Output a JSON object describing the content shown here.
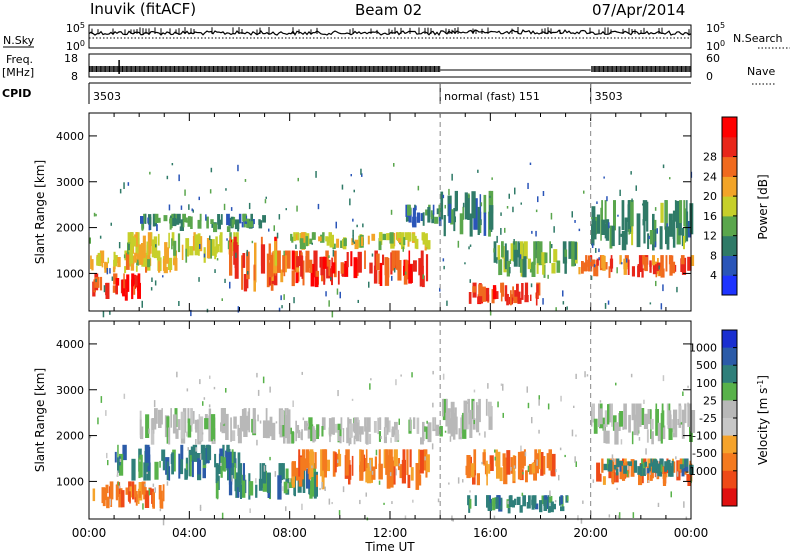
{
  "header": {
    "station": "Inuvik (fitACF)",
    "beam": "Beam 02",
    "date": "07/Apr/2014"
  },
  "panels": {
    "nsky": {
      "label_left": "N.Sky",
      "scale_top": "10^5",
      "scale_bottom": "10^0",
      "label_right": "N.Search",
      "right_top": "10^5",
      "right_bottom": "10^0"
    },
    "freq": {
      "label_left_1": "Freq.",
      "label_left_2": "[MHz]",
      "scale_top": "18",
      "scale_bottom": "8",
      "label_right": "Nave",
      "right_top": "60",
      "right_bottom": "0"
    },
    "cpid": {
      "label": "CPID",
      "segments": [
        {
          "text": "3503",
          "start_hour": 0,
          "end_hour": 14
        },
        {
          "text": "normal (fast) 151",
          "start_hour": 14,
          "end_hour": 20
        },
        {
          "text": "3503",
          "start_hour": 20,
          "end_hour": 24
        }
      ]
    }
  },
  "colorbars": {
    "power": {
      "label": "Power [dB]",
      "ticks": [
        "4",
        "8",
        "12",
        "16",
        "20",
        "24",
        "28"
      ],
      "colors": [
        "#1e34ff",
        "#2a55b8",
        "#2f7a67",
        "#5aa64c",
        "#c6cf2a",
        "#f2a428",
        "#f06a1e",
        "#e8261a",
        "#ff0000"
      ]
    },
    "velocity": {
      "label": "Velocity [m s^-1]",
      "ticks": [
        "1000",
        "500",
        "100",
        "25",
        "-25",
        "-100",
        "-500",
        "-1000"
      ],
      "colors": [
        "#1a2fd0",
        "#2b5ba8",
        "#2f7f7a",
        "#58b24a",
        "#b8b8b8",
        "#c7c7c7",
        "#f5a32b",
        "#f47a1f",
        "#ee4a18",
        "#e01010"
      ]
    }
  },
  "chart_data": [
    {
      "type": "heatmap",
      "title": "Power",
      "xlabel": "Time UT",
      "ylabel": "Slant Range [km]",
      "x_ticks": [
        "00:00",
        "04:00",
        "08:00",
        "12:00",
        "16:00",
        "20:00",
        "00:00"
      ],
      "y_ticks": [
        "1000",
        "2000",
        "3000",
        "4000"
      ],
      "xlim_hours": [
        0,
        24
      ],
      "ylim_km": [
        180,
        4500
      ],
      "colorbar_label": "Power [dB]",
      "colorbar_ticks": [
        4,
        8,
        12,
        16,
        20,
        24,
        28
      ],
      "regions": [
        {
          "t0": 0.0,
          "t1": 2.0,
          "r0": 400,
          "r1": 1000,
          "dB": 27
        },
        {
          "t0": 0.0,
          "t1": 3.5,
          "r0": 1000,
          "r1": 1500,
          "dB": 18
        },
        {
          "t0": 1.5,
          "t1": 6.0,
          "r0": 1200,
          "r1": 1900,
          "dB": 17
        },
        {
          "t0": 2.0,
          "t1": 7.0,
          "r0": 1900,
          "r1": 2300,
          "dB": 9
        },
        {
          "t0": 5.5,
          "t1": 7.5,
          "r0": 600,
          "r1": 1800,
          "dB": 26
        },
        {
          "t0": 7.0,
          "t1": 8.5,
          "r0": 800,
          "r1": 1500,
          "dB": 22
        },
        {
          "t0": 8.0,
          "t1": 13.5,
          "r0": 700,
          "r1": 1500,
          "dB": 27
        },
        {
          "t0": 8.0,
          "t1": 13.5,
          "r0": 1500,
          "r1": 1900,
          "dB": 15
        },
        {
          "t0": 12.5,
          "t1": 14.0,
          "r0": 2000,
          "r1": 2500,
          "dB": 8
        },
        {
          "t0": 14.0,
          "t1": 16.0,
          "r0": 1800,
          "r1": 2800,
          "dB": 9
        },
        {
          "t0": 15.0,
          "t1": 18.0,
          "r0": 300,
          "r1": 800,
          "dB": 26
        },
        {
          "t0": 16.0,
          "t1": 19.5,
          "r0": 900,
          "r1": 1700,
          "dB": 12
        },
        {
          "t0": 19.5,
          "t1": 24.0,
          "r0": 900,
          "r1": 1400,
          "dB": 24
        },
        {
          "t0": 20.0,
          "t1": 24.0,
          "r0": 1500,
          "r1": 2600,
          "dB": 10
        }
      ]
    },
    {
      "type": "heatmap",
      "title": "Velocity",
      "xlabel": "Time UT",
      "ylabel": "Slant Range [km]",
      "x_ticks": [
        "00:00",
        "04:00",
        "08:00",
        "12:00",
        "16:00",
        "20:00",
        "00:00"
      ],
      "y_ticks": [
        "1000",
        "2000",
        "3000",
        "4000"
      ],
      "xlim_hours": [
        0,
        24
      ],
      "ylim_km": [
        180,
        4500
      ],
      "colorbar_label": "Velocity [m s^-1]",
      "colorbar_ticks": [
        1000,
        500,
        100,
        25,
        -25,
        -100,
        -500,
        -1000
      ],
      "regions": [
        {
          "t0": 0.0,
          "t1": 3.0,
          "r0": 400,
          "r1": 1000,
          "v": -150
        },
        {
          "t0": 1.0,
          "t1": 6.0,
          "r0": 1000,
          "r1": 1800,
          "v": 150
        },
        {
          "t0": 2.0,
          "t1": 8.0,
          "r0": 1800,
          "r1": 2600,
          "v": 0
        },
        {
          "t0": 5.0,
          "t1": 9.0,
          "r0": 600,
          "r1": 1400,
          "v": 200
        },
        {
          "t0": 8.0,
          "t1": 13.5,
          "r0": 800,
          "r1": 1700,
          "v": -200
        },
        {
          "t0": 8.0,
          "t1": 14.0,
          "r0": 1800,
          "r1": 2400,
          "v": 0
        },
        {
          "t0": 14.0,
          "t1": 16.0,
          "r0": 1900,
          "r1": 2800,
          "v": 0
        },
        {
          "t0": 15.0,
          "t1": 18.5,
          "r0": 900,
          "r1": 1700,
          "v": -300
        },
        {
          "t0": 15.0,
          "t1": 19.0,
          "r0": 300,
          "r1": 700,
          "v": 150
        },
        {
          "t0": 20.0,
          "t1": 24.0,
          "r0": 900,
          "r1": 1500,
          "v": -200
        },
        {
          "t0": 20.5,
          "t1": 24.0,
          "r0": 1100,
          "r1": 1500,
          "v": 200
        },
        {
          "t0": 20.0,
          "t1": 24.0,
          "r0": 1800,
          "r1": 2700,
          "v": 0
        }
      ]
    }
  ]
}
